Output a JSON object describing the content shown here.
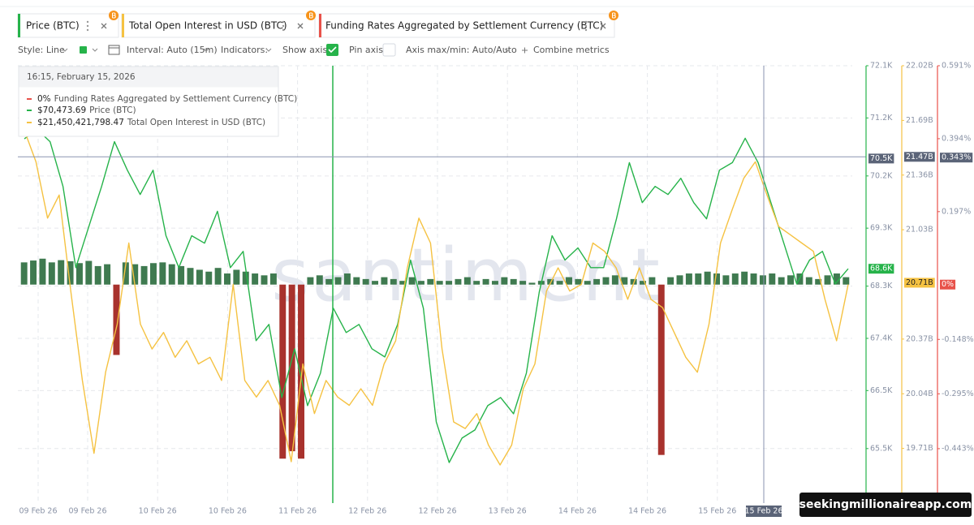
{
  "toolbar": {
    "style": "Style: Line",
    "interval": "Interval: Auto (15m)",
    "indicators": "Indicators:",
    "show_axis": "Show axis",
    "pin_axis": "Pin axis",
    "axis_maxmin": "Axis max/min: Auto/Auto",
    "combine": "Combine metrics"
  },
  "tooltip": {
    "time": "16:15, February 15, 2026",
    "values": [
      "0%",
      "$70,473.69",
      "$21,450,421,798.47"
    ]
  },
  "watermark": "santiment",
  "badge": "seekingmillionaireapp.com",
  "chart_data": {
    "type": "line",
    "xtick_labels": [
      "09 Feb 26",
      "09 Feb 26",
      "10 Feb 26",
      "10 Feb 26",
      "11 Feb 26",
      "12 Feb 26",
      "12 Feb 26",
      "13 Feb 26",
      "14 Feb 26",
      "14 Feb 26",
      "15 Feb 26"
    ],
    "grid": true,
    "ylim": [
      64560,
      72100
    ],
    "yticks": [
      {
        "value": 72100,
        "label": "72.1K"
      },
      {
        "value": 71200,
        "label": "71.2K"
      },
      {
        "value": 70200,
        "label": "70.2K"
      },
      {
        "value": 69300,
        "label": "69.3K"
      },
      {
        "value": 68300,
        "label": "68.3K"
      },
      {
        "value": 67400,
        "label": "67.4K"
      },
      {
        "value": 66500,
        "label": "66.5K"
      },
      {
        "value": 65500,
        "label": "65.5K"
      }
    ],
    "y2lim": [
      19.38,
      22.02
    ],
    "y2ticks": [
      {
        "value": 22.02,
        "label": "22.02B"
      },
      {
        "value": 21.69,
        "label": "21.69B"
      },
      {
        "value": 21.36,
        "label": "21.36B"
      },
      {
        "value": 21.03,
        "label": "21.03B"
      },
      {
        "value": 20.37,
        "label": "20.37B"
      },
      {
        "value": 20.04,
        "label": "20.04B"
      },
      {
        "value": 19.71,
        "label": "19.71B"
      }
    ],
    "y3lim": [
      -0.59,
      0.591
    ],
    "y3ticks": [
      {
        "value": 0.591,
        "label": "0.591%"
      },
      {
        "value": 0.394,
        "label": "0.394%"
      },
      {
        "value": 0.197,
        "label": "0.197%"
      },
      {
        "value": -0.148,
        "label": "-0.148%"
      },
      {
        "value": -0.295,
        "label": "-0.295%"
      },
      {
        "value": -0.443,
        "label": "-0.443%"
      }
    ],
    "series": [
      {
        "name": "Price (BTC)",
        "color": "#26b34a",
        "axis": "y",
        "values": [
          70840,
          71000,
          70790,
          70020,
          68620,
          69320,
          70020,
          70790,
          70300,
          69880,
          70300,
          69170,
          68620,
          69170,
          69040,
          69590,
          68620,
          68900,
          67360,
          67640,
          66380,
          67220,
          66240,
          66800,
          67920,
          67500,
          67640,
          67220,
          67080,
          67640,
          68750,
          67920,
          65960,
          65260,
          65680,
          65820,
          66240,
          66380,
          66100,
          66800,
          68200,
          69170,
          68750,
          68960,
          68620,
          68620,
          69460,
          70430,
          69740,
          70020,
          69880,
          70160,
          69740,
          69460,
          70300,
          70430,
          70850,
          70430,
          69740,
          69040,
          68340,
          68750,
          68900,
          68340,
          68600
        ]
      },
      {
        "name": "Total Open Interest in USD (BTC)",
        "color": "#f5c242",
        "axis": "y2",
        "values": [
          21.63,
          21.44,
          21.1,
          21.24,
          20.66,
          20.12,
          19.68,
          20.17,
          20.46,
          20.95,
          20.46,
          20.31,
          20.41,
          20.26,
          20.36,
          20.22,
          20.26,
          20.12,
          20.7,
          20.12,
          20.02,
          20.12,
          19.97,
          19.63,
          20.22,
          19.92,
          20.12,
          20.02,
          19.97,
          20.07,
          19.97,
          20.22,
          20.36,
          20.8,
          21.1,
          20.95,
          20.31,
          19.87,
          19.83,
          19.92,
          19.73,
          19.61,
          19.73,
          20.07,
          20.22,
          20.66,
          20.8,
          20.66,
          20.7,
          20.95,
          20.9,
          20.8,
          20.61,
          20.8,
          20.61,
          20.56,
          20.41,
          20.26,
          20.17,
          20.46,
          20.95,
          21.15,
          21.34,
          21.44,
          21.24,
          21.05,
          21.0,
          20.95,
          20.9,
          20.61,
          20.36,
          20.7
        ]
      },
      {
        "name": "Funding Rates Aggregated by Settlement Currency (BTC)",
        "type": "bar",
        "color": "#e8524a",
        "positive_color": "#3f7a50",
        "negative_color": "#a8322d",
        "axis": "y3",
        "values": [
          0.06,
          0.065,
          0.07,
          0.06,
          0.066,
          0.063,
          0.058,
          0.064,
          0.05,
          0.055,
          -0.19,
          0.06,
          0.055,
          0.05,
          0.058,
          0.06,
          0.055,
          0.05,
          0.045,
          0.04,
          0.035,
          0.045,
          0.03,
          0.04,
          0.035,
          0.03,
          0.025,
          0.03,
          -0.47,
          -0.45,
          -0.47,
          0.02,
          0.025,
          0.015,
          0.02,
          0.03,
          0.02,
          0.015,
          0.01,
          0.02,
          0.015,
          0.01,
          0.02,
          0.01,
          0.015,
          0.01,
          0.01,
          0.015,
          0.02,
          0.01,
          0.015,
          0.01,
          0.02,
          0.015,
          0.01,
          0.005,
          0.01,
          0.015,
          0.01,
          0.02,
          0.015,
          0.01,
          0.015,
          0.02,
          0.025,
          0.02,
          0.015,
          0.01,
          0.02,
          -0.46,
          0.02,
          0.025,
          0.03,
          0.03,
          0.035,
          0.03,
          0.025,
          0.03,
          0.035,
          0.03,
          0.025,
          0.03,
          0.02,
          0.025,
          0.03,
          0.02,
          0.015,
          0.025,
          0.03,
          0.02
        ]
      }
    ],
    "crosshair": {
      "x_label": "15 Feb 26",
      "markers": [
        {
          "axis": "y",
          "value": 70500,
          "label": "70.5K"
        },
        {
          "axis": "y2",
          "value": 21.47,
          "label": "21.47B"
        },
        {
          "axis": "y3",
          "value": 0.343,
          "label": "0.343%"
        }
      ]
    },
    "last_markers": [
      {
        "axis": "y",
        "value": 68600,
        "label": "68.6K"
      },
      {
        "axis": "y2",
        "value": 20.71,
        "label": "20.71B"
      },
      {
        "axis": "y3",
        "value": 0,
        "label": "0%"
      }
    ]
  }
}
